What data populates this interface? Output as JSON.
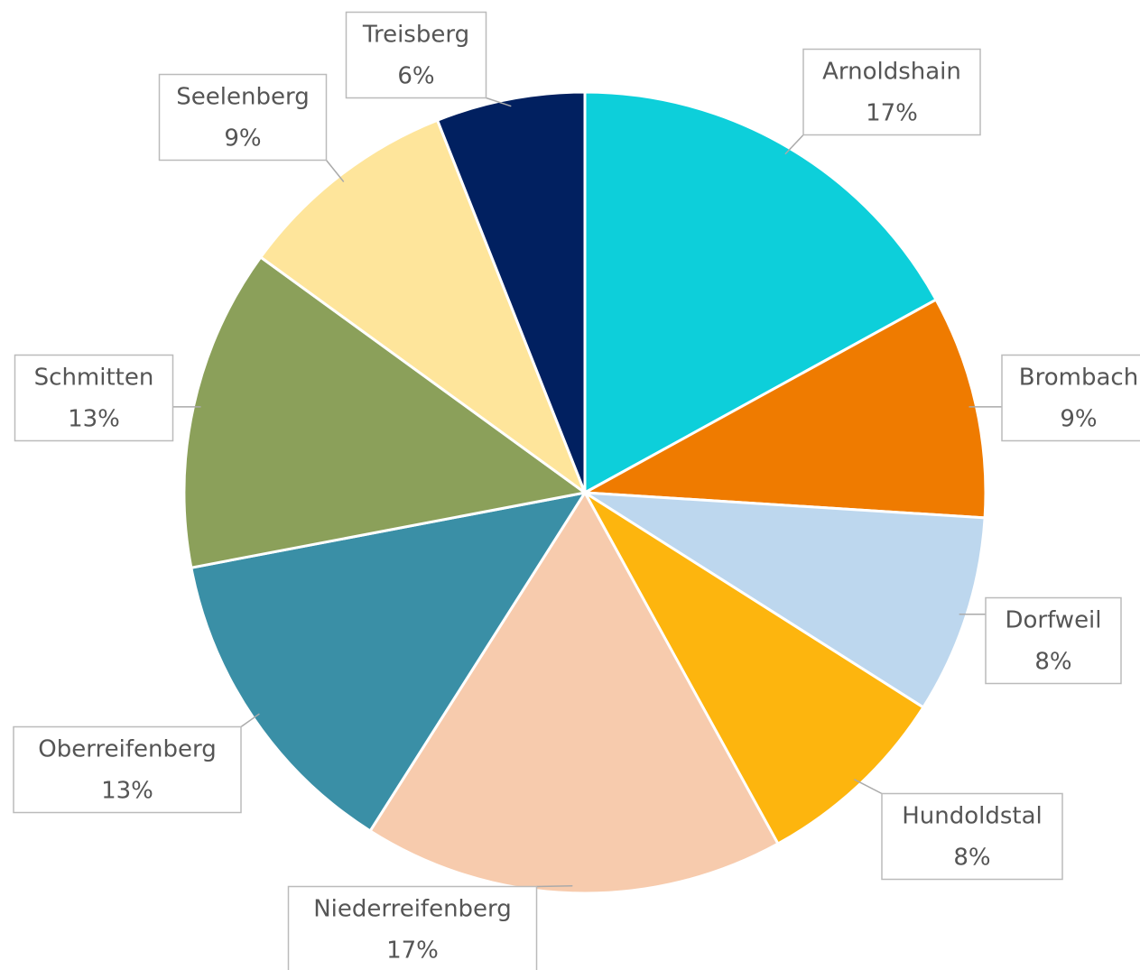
{
  "chart_data": {
    "type": "pie",
    "categories": [
      "Arnoldshain",
      "Brombach",
      "Dorfweil",
      "Hundoldstal",
      "Niederreifenberg",
      "Oberreifenberg",
      "Schmitten",
      "Seelenberg",
      "Treisberg"
    ],
    "values": [
      17,
      9,
      8,
      8,
      17,
      13,
      13,
      9,
      6
    ],
    "value_labels": [
      "17%",
      "9%",
      "8%",
      "8%",
      "17%",
      "13%",
      "13%",
      "9%",
      "6%"
    ],
    "colors": [
      "#0dcfda",
      "#ef7b00",
      "#bdd7ee",
      "#fdb50e",
      "#f7cbad",
      "#3a8fa6",
      "#8ba05a",
      "#fee59b",
      "#012060"
    ]
  }
}
